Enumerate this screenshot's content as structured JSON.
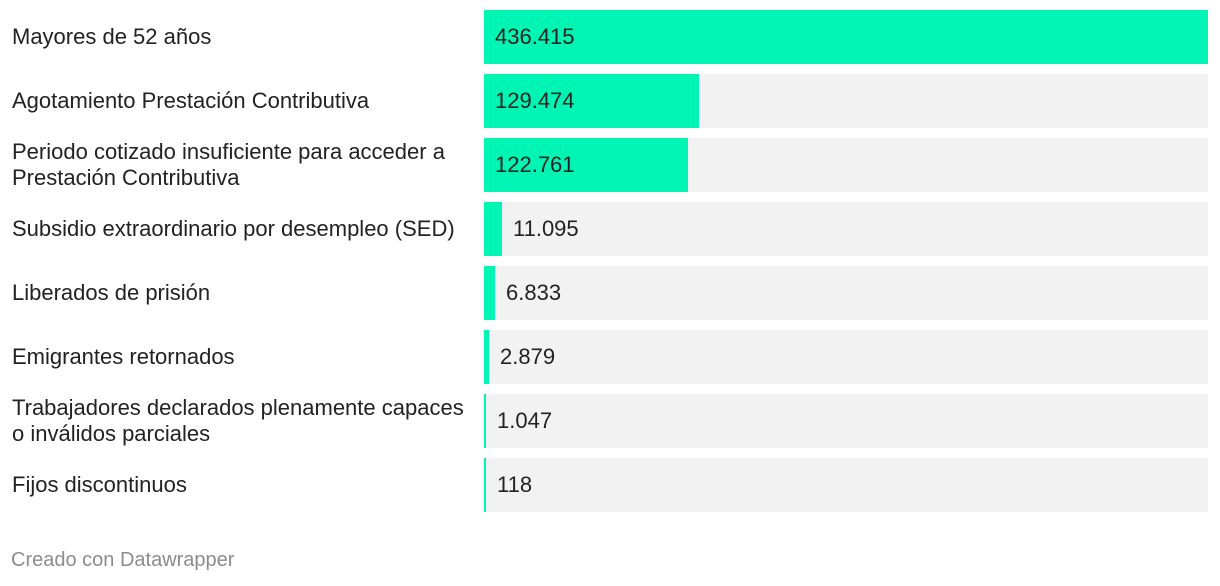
{
  "chart_data": {
    "type": "bar",
    "orientation": "horizontal",
    "categories": [
      "Mayores de 52 años",
      "Agotamiento Prestación Contributiva",
      "Periodo cotizado insuficiente para acceder a Prestación Contributiva",
      "Subsidio extraordinario por desempleo (SED)",
      "Liberados de prisión",
      "Emigrantes retornados",
      "Trabajadores declarados plenamente capaces o inválidos parciales",
      "Fijos discontinuos"
    ],
    "values": [
      436415,
      129474,
      122761,
      11095,
      6833,
      2879,
      1047,
      118
    ],
    "value_labels": [
      "436.415",
      "129.474",
      "122.761",
      "11.095",
      "6.833",
      "2.879",
      "1.047",
      "118"
    ],
    "xlim": [
      0,
      436415
    ],
    "bar_color": "#00f5b4",
    "track_color": "#f2f2f2",
    "grid": false
  },
  "footer": {
    "credit": "Creado con Datawrapper"
  }
}
